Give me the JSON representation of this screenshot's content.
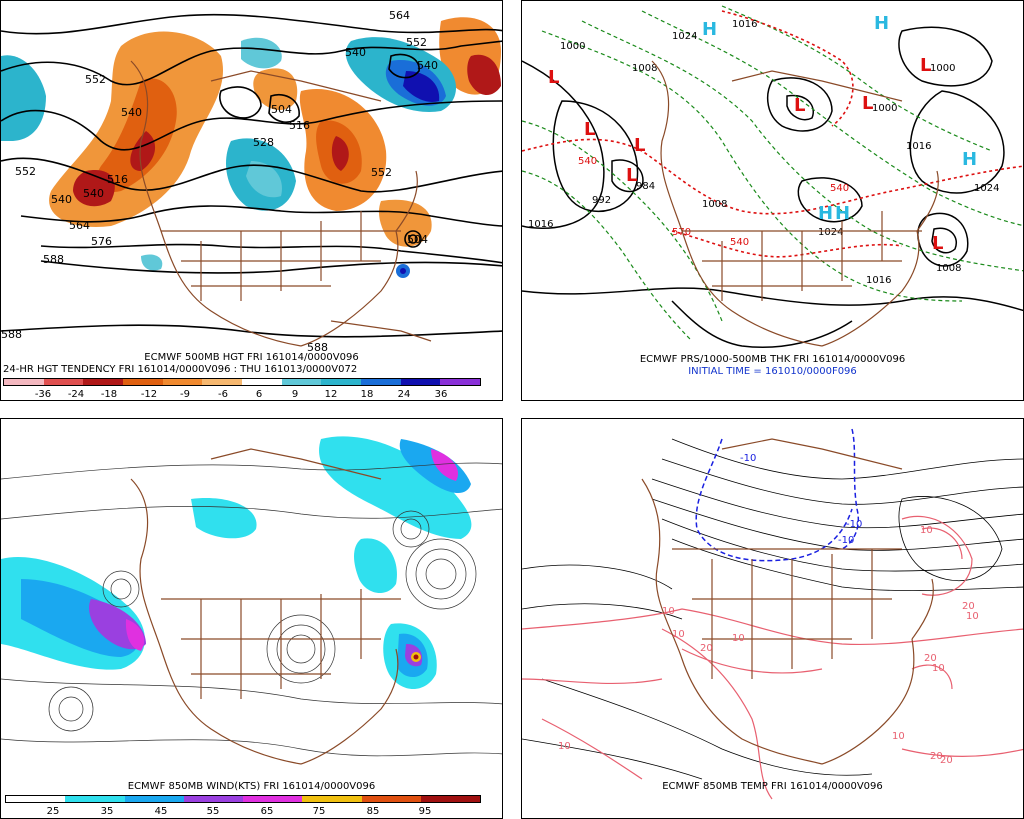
{
  "panels": {
    "tl": {
      "caption1": "ECMWF 500MB HGT FRI 161014/0000V096",
      "caption2": "24-HR HGT TENDENCY FRI 161014/0000V096 : THU 161013/0000V072",
      "legend_labels": [
        "-36",
        "-24",
        "-18",
        "-12",
        "-9",
        "-6",
        "6",
        "9",
        "12",
        "18",
        "24",
        "36"
      ],
      "legend_colors": [
        "#f4b8c0",
        "#e05050",
        "#b01818",
        "#e06010",
        "#f08a30",
        "#f6b870",
        "#ffffff",
        "#60c8d8",
        "#2cb4cc",
        "#1a6ed8",
        "#1010b0",
        "#8a30d8"
      ],
      "contour_labels": [
        "552",
        "540",
        "552",
        "516",
        "528",
        "540",
        "504",
        "564",
        "576",
        "588",
        "588",
        "552",
        "540",
        "516",
        "564",
        "552",
        "540",
        "504",
        "588",
        "540"
      ]
    },
    "tr": {
      "caption1": "ECMWF PRS/1000-500MB THK FRI 161014/0000V096",
      "caption2": "INITIAL TIME = 161010/0000F096",
      "high_labels": [
        "H",
        "H",
        "H",
        "H",
        "H",
        "H"
      ],
      "low_labels": [
        "L",
        "L",
        "L",
        "L",
        "L",
        "L",
        "L",
        "L"
      ],
      "pressure_labels": [
        "1000",
        "1016",
        "1024",
        "1008",
        "1000",
        "992",
        "984",
        "1016",
        "1024",
        "1008",
        "1016",
        "1024",
        "1008",
        "1000",
        "1016"
      ],
      "thickness_labels": [
        "540",
        "540",
        "570",
        "540"
      ]
    },
    "bl": {
      "caption1": "ECMWF 850MB WIND(KTS) FRI 161014/0000V096",
      "legend_labels": [
        "25",
        "35",
        "45",
        "55",
        "65",
        "75",
        "85",
        "95"
      ],
      "legend_colors": [
        "#ffffff",
        "#30e0ee",
        "#1aa8f0",
        "#9a40e0",
        "#e030e0",
        "#f0c010",
        "#e05010",
        "#a01010"
      ]
    },
    "br": {
      "caption1": "ECMWF 850MB TEMP FRI 161014/0000V096",
      "temp_labels": [
        "-10",
        "-10",
        "-10",
        "10",
        "20",
        "10",
        "20",
        "10",
        "10",
        "10",
        "20",
        "10",
        "20",
        "20",
        "10",
        "10"
      ]
    }
  }
}
